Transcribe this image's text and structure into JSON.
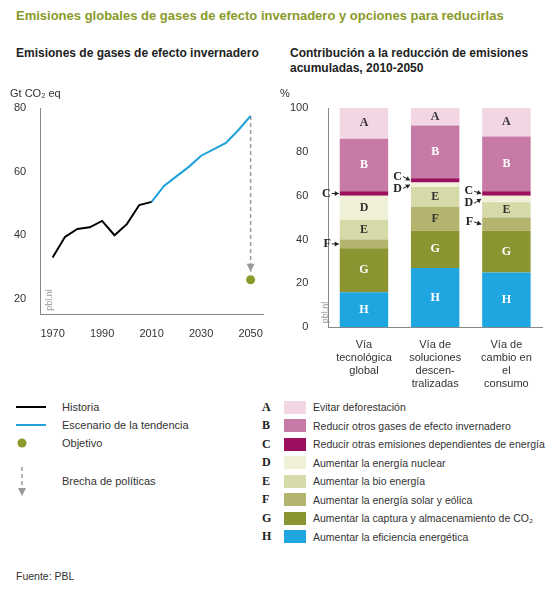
{
  "title": "Emisiones globales de gases de efecto invernadero y opciones para reducirlas",
  "source": "Fuente: PBL",
  "chart_data": [
    {
      "type": "line",
      "title": "Emisiones de gases de efecto invernadero",
      "ylabel": "Gt CO₂ eq",
      "annotations": [
        "pbl.nl"
      ],
      "xlim": [
        1965,
        2055
      ],
      "xticks": [
        1970,
        1990,
        2010,
        2030,
        2050
      ],
      "ylim": [
        15,
        80
      ],
      "yticks": [
        20,
        40,
        60,
        80
      ],
      "grid": false,
      "legend": "bottom",
      "series": [
        {
          "name": "Historia",
          "color": "#000000",
          "line_style": "solid",
          "marker": "none",
          "x": [
            1970,
            1975,
            1980,
            1985,
            1990,
            1995,
            2000,
            2005,
            2010
          ],
          "values": [
            33,
            39.5,
            42,
            42.5,
            44.5,
            40,
            43.5,
            49.5,
            50.5
          ]
        },
        {
          "name": "Escenario de la tendencia",
          "color": "#1ea0db",
          "line_style": "solid",
          "marker": "none",
          "x": [
            2010,
            2015,
            2020,
            2025,
            2030,
            2035,
            2040,
            2045,
            2050
          ],
          "values": [
            50.5,
            55.5,
            58.5,
            61.5,
            65,
            67,
            69,
            73,
            77.5
          ]
        },
        {
          "name": "Objetivo",
          "type": "scatter",
          "color": "#8c9a2c",
          "marker": "circle",
          "x": [
            2050
          ],
          "values": [
            26
          ]
        },
        {
          "name": "Brecha de políticas",
          "color": "#999999",
          "line_style": "dashed",
          "marker": "arrow",
          "x": [
            2050,
            2050
          ],
          "values": [
            77.5,
            28.5
          ]
        }
      ]
    },
    {
      "type": "bar",
      "title": "Contribución a la reducción de emisiones acumuladas, 2010-2050",
      "ylabel": "%",
      "annotations": [
        "pbl.nl"
      ],
      "stacked": true,
      "grid": false,
      "legend": "bottom",
      "categories": [
        [
          "Vía",
          "tecnológica",
          "global"
        ],
        [
          "Vía de",
          "soluciones",
          "descen-",
          "tralizadas"
        ],
        [
          "Vía de",
          "cambio en",
          "el",
          "consumo"
        ]
      ],
      "ylim": [
        0,
        100
      ],
      "yticks": [
        0,
        20,
        40,
        60,
        80,
        100
      ],
      "series": [
        {
          "label": "A",
          "name": "Evitar deforestación",
          "color": "#f2d6e4",
          "values": [
            14,
            8,
            13
          ]
        },
        {
          "label": "B",
          "name": "Reducir otros gases de efecto invernadero",
          "color": "#c77aa5",
          "values": [
            24,
            24,
            25
          ]
        },
        {
          "label": "C",
          "name": "Reducir otras emisiones dependientes de energía",
          "color": "#9c0f5f",
          "values": [
            2,
            2,
            2
          ]
        },
        {
          "label": "D",
          "name": "Aumentar la energía nuclear",
          "color": "#f1f1da",
          "values": [
            11,
            2,
            3
          ]
        },
        {
          "label": "E",
          "name": "Aumentar la bio energía",
          "color": "#d6d9a8",
          "values": [
            9,
            9,
            7
          ]
        },
        {
          "label": "F",
          "name": "Aumentar la energía solar y eólica",
          "color": "#b4b46e",
          "values": [
            4,
            11,
            6
          ]
        },
        {
          "label": "G",
          "name": "Aumentar la captura y almacenamiento de CO₂",
          "color": "#8a9430",
          "values": [
            20,
            17,
            19
          ]
        },
        {
          "label": "H",
          "name": "Aumentar la eficiencia energética",
          "color": "#1fa6e0",
          "values": [
            16,
            27,
            25
          ]
        }
      ]
    }
  ]
}
